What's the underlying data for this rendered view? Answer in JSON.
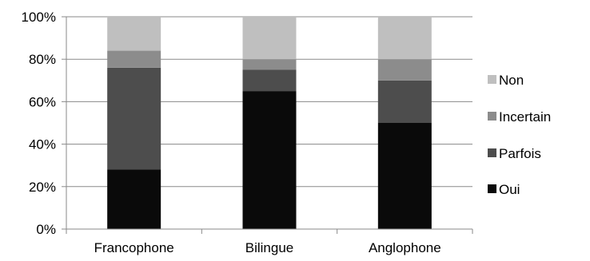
{
  "chart_data": {
    "type": "bar",
    "stacked": true,
    "percent": true,
    "categories": [
      "Francophone",
      "Bilingue",
      "Anglophone"
    ],
    "series": [
      {
        "name": "Oui",
        "values": [
          28,
          65,
          50
        ],
        "color": "#0a0a0a"
      },
      {
        "name": "Parfois",
        "values": [
          48,
          10,
          20
        ],
        "color": "#4d4d4d"
      },
      {
        "name": "Incertain",
        "values": [
          8,
          5,
          10
        ],
        "color": "#8c8c8c"
      },
      {
        "name": "Non",
        "values": [
          16,
          20,
          20
        ],
        "color": "#bfbfbf"
      }
    ],
    "y_ticks": [
      "0%",
      "20%",
      "40%",
      "60%",
      "80%",
      "100%"
    ],
    "ylim": [
      0,
      100
    ],
    "grid": true,
    "legend_position": "right"
  }
}
